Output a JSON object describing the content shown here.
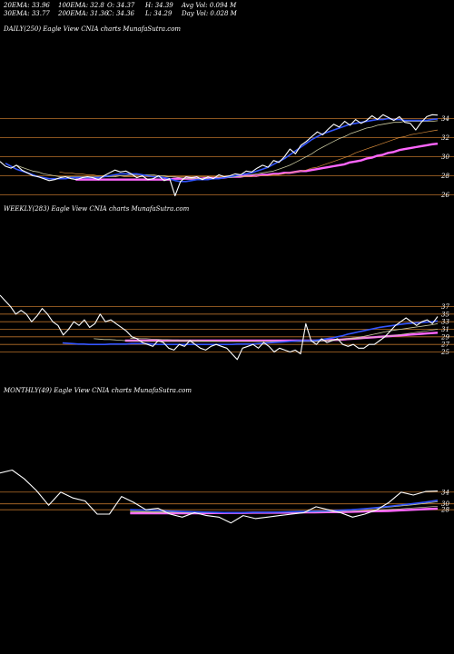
{
  "header": {
    "row1": [
      {
        "text": "20EMA: 33.96"
      },
      {
        "text": "100EMA: 32.8"
      },
      {
        "text": "O: 34.37"
      },
      {
        "text": "H: 34.39"
      },
      {
        "text": "Avg Vol: 0.094 M"
      }
    ],
    "row2": [
      {
        "text": "30EMA: 33.77"
      },
      {
        "text": "200EMA: 31.36"
      },
      {
        "text": "C: 34.36"
      },
      {
        "text": "L: 34.29"
      },
      {
        "text": "Day Vol: 0.028 M"
      }
    ]
  },
  "colors": {
    "background": "#000000",
    "price": "#ffffff",
    "ema_fast": "#3355ff",
    "ema_mid": "#c9c9a0",
    "ema_slow": "#ff66ff",
    "grid": "#b8702a"
  },
  "chart_data": [
    {
      "type": "line",
      "label": "DAILY(250) Eagle  View  CNIA charts MunafaSutra.com",
      "yticks": [
        34,
        32,
        30,
        28,
        26
      ],
      "ylim": [
        25,
        35
      ],
      "series": [
        {
          "role": "price",
          "values": [
            29.5,
            29.0,
            28.8,
            29.1,
            28.6,
            28.3,
            28.0,
            27.9,
            27.7,
            27.5,
            27.6,
            27.8,
            27.9,
            27.7,
            27.6,
            27.8,
            27.9,
            27.8,
            27.6,
            28.0,
            28.3,
            28.6,
            28.4,
            28.5,
            28.2,
            27.8,
            28.0,
            27.6,
            27.7,
            28.0,
            27.5,
            27.7,
            25.9,
            27.4,
            27.9,
            27.8,
            27.9,
            27.6,
            27.9,
            27.7,
            28.1,
            27.9,
            28.0,
            28.2,
            28.1,
            28.5,
            28.4,
            28.8,
            29.1,
            28.9,
            29.6,
            29.4,
            30.0,
            30.8,
            30.3,
            31.2,
            31.6,
            32.1,
            32.6,
            32.3,
            32.9,
            33.4,
            33.1,
            33.7,
            33.3,
            33.9,
            33.5,
            33.8,
            34.3,
            33.9,
            34.4,
            34.1,
            33.8,
            34.2,
            33.6,
            33.5,
            32.8,
            33.6,
            34.2,
            34.4,
            34.36
          ]
        },
        {
          "role": "ema20",
          "values": [
            29.3,
            29.0,
            28.7,
            28.5,
            28.3,
            28.1,
            27.9,
            27.8,
            27.7,
            27.7,
            27.7,
            27.7,
            27.8,
            27.8,
            27.8,
            27.8,
            27.8,
            27.8,
            27.9,
            28.0,
            28.1,
            28.2,
            28.2,
            28.2,
            28.2,
            28.1,
            28.0,
            27.9,
            27.9,
            27.8,
            27.7,
            27.5,
            27.4,
            27.4,
            27.5,
            27.6,
            27.6,
            27.6,
            27.7,
            27.7,
            27.8,
            27.9,
            28.0,
            28.1,
            28.2,
            28.3,
            28.5,
            28.7,
            28.9,
            29.2,
            29.5,
            29.8,
            30.2,
            30.6,
            31.0,
            31.4,
            31.8,
            32.1,
            32.4,
            32.6,
            32.8,
            33.0,
            33.2,
            33.4,
            33.5,
            33.6,
            33.7,
            33.8,
            33.9,
            33.9,
            34.0,
            33.9,
            33.9,
            33.8,
            33.8,
            33.8,
            33.8,
            33.8,
            33.9,
            33.96
          ]
        },
        {
          "role": "ema30",
          "values": [
            29.1,
            28.9,
            28.7,
            28.5,
            28.4,
            28.2,
            28.1,
            28.0,
            27.9,
            27.9,
            27.9,
            27.9,
            27.9,
            27.9,
            27.9,
            27.9,
            27.9,
            27.9,
            27.9,
            28.0,
            28.0,
            28.1,
            28.1,
            28.1,
            28.1,
            28.1,
            28.0,
            28.0,
            27.9,
            27.9,
            27.8,
            27.7,
            27.7,
            27.7,
            27.7,
            27.7,
            27.7,
            27.8,
            27.8,
            27.8,
            27.9,
            27.9,
            28.0,
            28.1,
            28.2,
            28.3,
            28.4,
            28.5,
            28.7,
            28.9,
            29.1,
            29.4,
            29.7,
            30.0,
            30.3,
            30.7,
            31.0,
            31.3,
            31.6,
            31.9,
            32.1,
            32.4,
            32.6,
            32.8,
            33.0,
            33.1,
            33.3,
            33.4,
            33.5,
            33.6,
            33.6,
            33.7,
            33.7,
            33.7,
            33.7,
            33.7,
            33.7,
            33.77
          ]
        },
        {
          "role": "ema100",
          "values": [
            28.4,
            28.3,
            28.3,
            28.2,
            28.2,
            28.1,
            28.1,
            28.0,
            28.0,
            28.0,
            28.0,
            28.0,
            27.9,
            27.9,
            27.9,
            27.9,
            27.9,
            27.9,
            27.9,
            27.9,
            27.9,
            27.9,
            27.9,
            27.9,
            27.9,
            27.9,
            27.9,
            27.9,
            27.9,
            27.9,
            27.9,
            27.9,
            27.9,
            27.9,
            27.9,
            27.9,
            28.0,
            28.0,
            28.0,
            28.1,
            28.1,
            28.2,
            28.3,
            28.4,
            28.5,
            28.6,
            28.8,
            28.9,
            29.1,
            29.3,
            29.5,
            29.7,
            29.9,
            30.1,
            30.4,
            30.6,
            30.8,
            31.0,
            31.2,
            31.4,
            31.6,
            31.8,
            32.0,
            32.1,
            32.3,
            32.4,
            32.5,
            32.6,
            32.7,
            32.8
          ]
        },
        {
          "role": "ema200",
          "values": [
            27.6,
            27.6,
            27.6,
            27.6,
            27.6,
            27.6,
            27.6,
            27.6,
            27.6,
            27.6,
            27.6,
            27.6,
            27.6,
            27.6,
            27.6,
            27.6,
            27.6,
            27.6,
            27.7,
            27.7,
            27.7,
            27.7,
            27.7,
            27.7,
            27.8,
            27.8,
            27.8,
            27.8,
            27.9,
            27.9,
            27.9,
            28.0,
            28.0,
            28.0,
            28.1,
            28.1,
            28.2,
            28.2,
            28.3,
            28.3,
            28.4,
            28.5,
            28.5,
            28.6,
            28.7,
            28.8,
            28.9,
            29.0,
            29.1,
            29.2,
            29.4,
            29.5,
            29.6,
            29.8,
            29.9,
            30.1,
            30.2,
            30.4,
            30.5,
            30.7,
            30.8,
            30.9,
            31.0,
            31.1,
            31.2,
            31.3,
            31.36
          ]
        }
      ]
    },
    {
      "type": "line",
      "label": "WEEKLY(283) Eagle  View  CNIA charts MunafaSutra.com",
      "yticks": [
        37,
        35,
        33,
        31,
        29,
        27,
        25
      ],
      "ylim": [
        22,
        46
      ],
      "series": [
        {
          "role": "price",
          "values": [
            40.0,
            38.5,
            37.0,
            35.0,
            36.0,
            35.0,
            33.0,
            34.5,
            36.5,
            35.0,
            33.0,
            32.0,
            29.5,
            31.0,
            33.0,
            32.0,
            33.5,
            31.5,
            32.5,
            35.0,
            33.0,
            33.5,
            32.5,
            31.5,
            30.5,
            29.0,
            28.5,
            27.5,
            27.0,
            26.5,
            28.0,
            27.5,
            26.0,
            25.5,
            27.0,
            26.5,
            28.0,
            27.0,
            26.0,
            25.5,
            26.5,
            27.0,
            26.5,
            26.0,
            24.5,
            23.0,
            26.0,
            26.5,
            27.0,
            26.0,
            27.5,
            26.5,
            25.0,
            26.0,
            25.5,
            25.0,
            25.5,
            24.5,
            32.5,
            28.0,
            27.0,
            28.5,
            27.5,
            28.0,
            28.5,
            27.0,
            26.5,
            27.0,
            26.0,
            26.0,
            27.0,
            27.0,
            28.0,
            29.0,
            30.5,
            32.0,
            33.0,
            34.0,
            33.0,
            32.0,
            33.0,
            33.5,
            32.5,
            34.36
          ]
        },
        {
          "role": "ema20",
          "values": [
            27.4,
            27.3,
            27.2,
            27.1,
            27.1,
            27.0,
            27.0,
            27.0,
            27.0,
            27.1,
            27.1,
            27.1,
            27.1,
            27.2,
            27.2,
            27.2,
            27.2,
            27.1,
            27.0,
            27.0,
            27.0,
            27.0,
            27.0,
            27.0,
            27.0,
            27.0,
            27.0,
            27.0,
            27.0,
            27.0,
            27.0,
            27.0,
            27.0,
            27.1,
            27.1,
            27.1,
            27.1,
            27.2,
            27.3,
            27.4,
            27.5,
            27.6,
            27.7,
            27.8,
            27.9,
            28.0,
            28.0,
            28.0,
            28.1,
            28.3,
            28.5,
            28.7,
            29.0,
            29.3,
            29.7,
            30.0,
            30.3,
            30.6,
            30.9,
            31.2,
            31.5,
            31.7,
            31.9,
            32.1,
            32.3,
            32.5,
            32.6,
            32.7,
            32.8,
            32.9,
            33.0,
            33.2
          ]
        },
        {
          "role": "ema30",
          "values": [
            28.5,
            28.4,
            28.3,
            28.3,
            28.2,
            28.1,
            28.0,
            28.0,
            27.9,
            27.9,
            27.9,
            27.9,
            27.8,
            27.8,
            27.8,
            27.8,
            27.8,
            27.8,
            27.8,
            27.8,
            27.8,
            27.8,
            27.8,
            27.8,
            27.8,
            27.8,
            27.8,
            27.8,
            27.8,
            27.8,
            27.8,
            27.8,
            27.8,
            27.8,
            27.8,
            27.8,
            27.8,
            27.8,
            27.8,
            27.8,
            27.8,
            27.8,
            27.8,
            27.9,
            28.0,
            28.1,
            28.2,
            28.3,
            28.5,
            28.7,
            28.9,
            29.1,
            29.4,
            29.7,
            30.0,
            30.3,
            30.6,
            30.8,
            31.0,
            31.2,
            31.4,
            31.6,
            31.8,
            32.0,
            32.2,
            32.5
          ]
        },
        {
          "role": "ema100",
          "values": [
            28.6,
            28.6,
            28.5,
            28.5,
            28.4,
            28.4,
            28.3,
            28.3,
            28.2,
            28.2,
            28.1,
            28.1,
            28.0,
            28.0,
            27.9,
            27.9,
            27.9,
            27.8,
            27.8,
            27.8,
            27.8,
            27.8,
            27.8,
            27.8,
            27.8,
            27.8,
            27.8,
            27.8,
            27.8,
            27.8,
            27.8,
            27.8,
            27.8,
            27.9,
            27.9,
            28.0,
            28.0,
            28.1,
            28.1,
            28.2,
            28.3,
            28.4,
            28.5,
            28.6,
            28.7,
            28.8,
            28.9,
            29.0,
            29.1,
            29.2,
            29.4,
            29.6,
            29.8,
            30.0,
            30.2,
            30.4,
            30.6,
            30.8,
            31.0
          ]
        },
        {
          "role": "ema200",
          "values": [
            28.0,
            28.0,
            28.0,
            28.0,
            28.0,
            28.0,
            28.0,
            28.0,
            28.0,
            28.0,
            28.0,
            28.0,
            28.0,
            28.0,
            28.0,
            28.0,
            28.0,
            28.0,
            28.0,
            28.0,
            28.0,
            28.0,
            28.0,
            28.0,
            28.0,
            28.0,
            28.0,
            28.0,
            28.0,
            28.0,
            28.0,
            28.0,
            28.0,
            28.0,
            28.0,
            28.0,
            28.0,
            28.1,
            28.1,
            28.2,
            28.2,
            28.3,
            28.4,
            28.5,
            28.6,
            28.7,
            28.8,
            28.9,
            29.0,
            29.1,
            29.2,
            29.3,
            29.4,
            29.5,
            29.6,
            29.7,
            29.8,
            29.9,
            30.0,
            30.1
          ]
        }
      ]
    },
    {
      "type": "line",
      "label": "MONTHLY(49) Eagle  View  CNIA charts MunafaSutra.com",
      "yticks": [
        34,
        30,
        28
      ],
      "ylim": [
        16,
        50
      ],
      "series": [
        {
          "role": "price",
          "values": [
            40.5,
            41.5,
            38.5,
            34.5,
            29.5,
            34.0,
            32.0,
            31.0,
            26.5,
            26.5,
            32.5,
            30.5,
            28.0,
            28.5,
            26.5,
            25.5,
            27.0,
            26.0,
            25.5,
            23.5,
            26.0,
            25.0,
            25.5,
            26.0,
            26.5,
            27.0,
            29.0,
            28.0,
            27.0,
            25.5,
            26.5,
            28.0,
            30.5,
            34.0,
            33.0,
            34.2,
            34.36
          ]
        },
        {
          "role": "ema20",
          "values": [
            28.0,
            27.9,
            27.8,
            27.6,
            27.4,
            27.3,
            27.2,
            27.1,
            27.0,
            27.0,
            27.1,
            27.1,
            27.2,
            27.3,
            27.4,
            27.5,
            27.6,
            27.8,
            28.0,
            28.3,
            28.7,
            29.1,
            29.6,
            30.1,
            30.6,
            31.2
          ]
        },
        {
          "role": "ema30",
          "values": [
            27.5,
            27.4,
            27.3,
            27.2,
            27.1,
            27.0,
            27.0,
            27.0,
            27.0,
            27.0,
            27.0,
            27.1,
            27.1,
            27.2,
            27.3,
            27.4,
            27.5,
            27.7,
            27.9,
            28.2,
            28.5,
            28.9,
            29.3,
            29.7,
            30.2,
            30.7
          ]
        },
        {
          "role": "ema100",
          "values": [
            27.2,
            27.2,
            27.1,
            27.1,
            27.1,
            27.0,
            27.0,
            27.0,
            27.0,
            27.0,
            27.0,
            27.1,
            27.1,
            27.1,
            27.2,
            27.2,
            27.3,
            27.4,
            27.5,
            27.7,
            27.9,
            28.1,
            28.3,
            28.6,
            28.9,
            29.2
          ]
        },
        {
          "role": "ema200",
          "values": [
            26.8,
            26.8,
            26.8,
            26.8,
            26.8,
            26.8,
            26.8,
            26.9,
            26.9,
            26.9,
            27.0,
            27.0,
            27.0,
            27.0,
            27.1,
            27.1,
            27.2,
            27.2,
            27.3,
            27.4,
            27.5,
            27.6,
            27.8,
            28.0,
            28.2,
            28.4
          ]
        }
      ]
    }
  ]
}
